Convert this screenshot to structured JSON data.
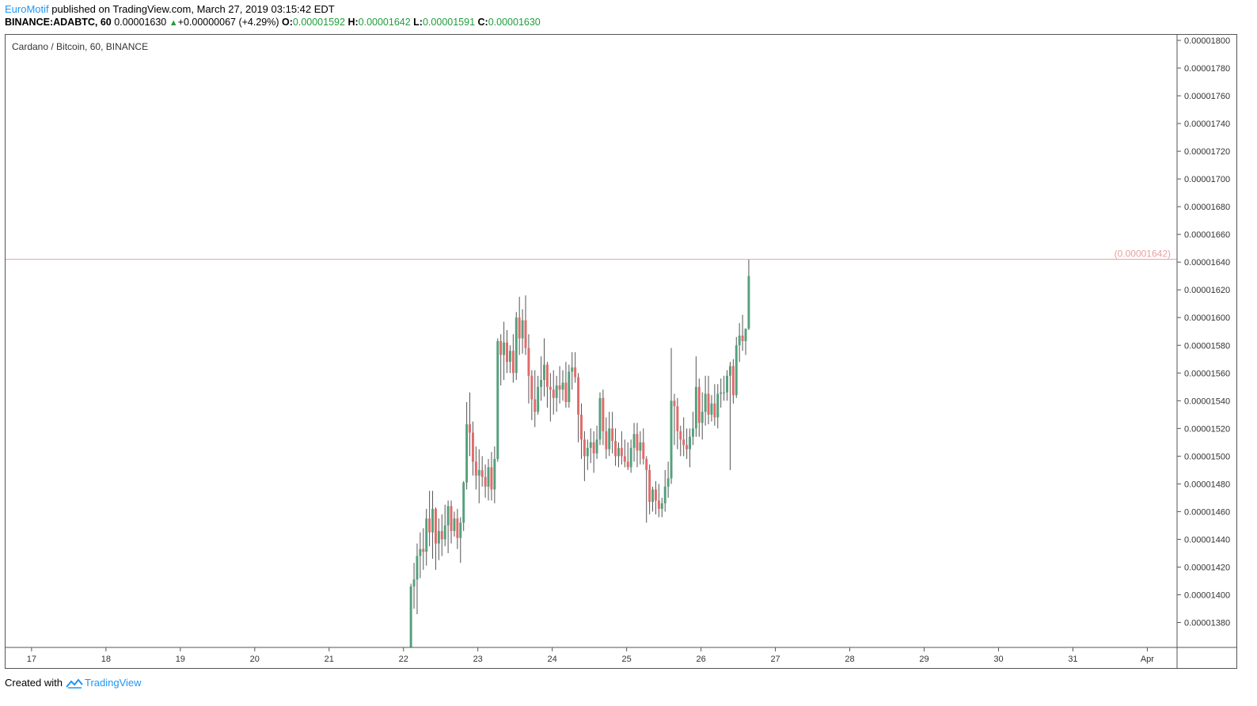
{
  "header": {
    "author": "EuroMotif",
    "published_text": " published on TradingView.com, March 27, 2019 03:15:42 EDT",
    "symbol": "BINANCE:ADABTC, 60",
    "last": "0.00001630",
    "change": "+0.00000067 (+4.29%)",
    "o_label": "O:",
    "o_value": "0.00001592",
    "h_label": "H:",
    "h_value": "0.00001642",
    "l_label": "L:",
    "l_value": "0.00001591",
    "c_label": "C:",
    "c_value": "0.00001630"
  },
  "legend": "Cardano / Bitcoin, 60, BINANCE",
  "footer": {
    "created_with": "Created with",
    "brand": "TradingView"
  },
  "chart_data": {
    "type": "candlestick",
    "y_ticks": [
      "0.00001800",
      "0.00001780",
      "0.00001760",
      "0.00001740",
      "0.00001720",
      "0.00001700",
      "0.00001680",
      "0.00001660",
      "0.00001640",
      "0.00001620",
      "0.00001600",
      "0.00001580",
      "0.00001560",
      "0.00001540",
      "0.00001520",
      "0.00001500",
      "0.00001480",
      "0.00001460",
      "0.00001440",
      "0.00001420",
      "0.00001400",
      "0.00001380"
    ],
    "x_ticks": [
      "17",
      "18",
      "19",
      "20",
      "21",
      "22",
      "23",
      "24",
      "25",
      "26",
      "27",
      "28",
      "29",
      "30",
      "31",
      "Apr"
    ],
    "ylim": [
      1.362e-05,
      1.804e-05
    ],
    "xlim_days": [
      16.65,
      32.4
    ],
    "high_line": {
      "value": 1.642e-05,
      "label": "(0.00001642)"
    },
    "colors": {
      "up": "#53a17c",
      "down": "#e26a6a",
      "wick": "#555555",
      "high_line": "#e8a0a0",
      "axis_text": "#333333"
    },
    "candles_start_day": 22.1,
    "candles_step_day": 0.04167,
    "candles": [
      [
        1.362e-05,
        1.408e-05,
        1.362e-05,
        1.406e-05
      ],
      [
        1.406e-05,
        1.423e-05,
        1.39e-05,
        1.411e-05
      ],
      [
        1.411e-05,
        1.437e-05,
        1.386e-05,
        1.428e-05
      ],
      [
        1.428e-05,
        1.445e-05,
        1.412e-05,
        1.433e-05
      ],
      [
        1.433e-05,
        1.448e-05,
        1.418e-05,
        1.431e-05
      ],
      [
        1.431e-05,
        1.462e-05,
        1.421e-05,
        1.455e-05
      ],
      [
        1.455e-05,
        1.475e-05,
        1.435e-05,
        1.445e-05
      ],
      [
        1.445e-05,
        1.475e-05,
        1.426e-05,
        1.462e-05
      ],
      [
        1.462e-05,
        1.463e-05,
        1.418e-05,
        1.437e-05
      ],
      [
        1.437e-05,
        1.455e-05,
        1.425e-05,
        1.446e-05
      ],
      [
        1.446e-05,
        1.458e-05,
        1.428e-05,
        1.44e-05
      ],
      [
        1.44e-05,
        1.465e-05,
        1.435e-05,
        1.45e-05
      ],
      [
        1.45e-05,
        1.468e-05,
        1.43e-05,
        1.464e-05
      ],
      [
        1.464e-05,
        1.468e-05,
        1.437e-05,
        1.446e-05
      ],
      [
        1.446e-05,
        1.46e-05,
        1.442e-05,
        1.455e-05
      ],
      [
        1.455e-05,
        1.462e-05,
        1.433e-05,
        1.441e-05
      ],
      [
        1.441e-05,
        1.456e-05,
        1.423e-05,
        1.452e-05
      ],
      [
        1.452e-05,
        1.482e-05,
        1.446e-05,
        1.481e-05
      ],
      [
        1.481e-05,
        1.539e-05,
        1.476e-05,
        1.523e-05
      ],
      [
        1.523e-05,
        1.546e-05,
        1.5e-05,
        1.517e-05
      ],
      [
        1.517e-05,
        1.525e-05,
        1.486e-05,
        1.496e-05
      ],
      [
        1.496e-05,
        1.507e-05,
        1.476e-05,
        1.486e-05
      ],
      [
        1.486e-05,
        1.505e-05,
        1.466e-05,
        1.49e-05
      ],
      [
        1.49e-05,
        1.5e-05,
        1.478e-05,
        1.485e-05
      ],
      [
        1.485e-05,
        1.494e-05,
        1.47e-05,
        1.478e-05
      ],
      [
        1.478e-05,
        1.498e-05,
        1.468e-05,
        1.492e-05
      ],
      [
        1.492e-05,
        1.503e-05,
        1.468e-05,
        1.476e-05
      ],
      [
        1.476e-05,
        1.507e-05,
        1.466e-05,
        1.498e-05
      ],
      [
        1.498e-05,
        1.585e-05,
        1.496e-05,
        1.583e-05
      ],
      [
        1.583e-05,
        1.588e-05,
        1.551e-05,
        1.573e-05
      ],
      [
        1.573e-05,
        1.597e-05,
        1.555e-05,
        1.582e-05
      ],
      [
        1.582e-05,
        1.591e-05,
        1.56e-05,
        1.568e-05
      ],
      [
        1.568e-05,
        1.58e-05,
        1.56e-05,
        1.576e-05
      ],
      [
        1.576e-05,
        1.588e-05,
        1.553e-05,
        1.56e-05
      ],
      [
        1.56e-05,
        1.604e-05,
        1.555e-05,
        1.6e-05
      ],
      [
        1.6e-05,
        1.615e-05,
        1.573e-05,
        1.585e-05
      ],
      [
        1.585e-05,
        1.606e-05,
        1.574e-05,
        1.598e-05
      ],
      [
        1.598e-05,
        1.616e-05,
        1.573e-05,
        1.578e-05
      ],
      [
        1.578e-05,
        1.588e-05,
        1.538e-05,
        1.558e-05
      ],
      [
        1.558e-05,
        1.562e-05,
        1.526e-05,
        1.541e-05
      ],
      [
        1.541e-05,
        1.562e-05,
        1.521e-05,
        1.532e-05
      ],
      [
        1.532e-05,
        1.558e-05,
        1.53e-05,
        1.55e-05
      ],
      [
        1.55e-05,
        1.572e-05,
        1.54e-05,
        1.555e-05
      ],
      [
        1.555e-05,
        1.585e-05,
        1.543e-05,
        1.566e-05
      ],
      [
        1.566e-05,
        1.568e-05,
        1.535e-05,
        1.55e-05
      ],
      [
        1.55e-05,
        1.56e-05,
        1.525e-05,
        1.548e-05
      ],
      [
        1.548e-05,
        1.562e-05,
        1.53e-05,
        1.542e-05
      ],
      [
        1.542e-05,
        1.558e-05,
        1.532e-05,
        1.551e-05
      ],
      [
        1.551e-05,
        1.565e-05,
        1.538e-05,
        1.548e-05
      ],
      [
        1.548e-05,
        1.562e-05,
        1.54e-05,
        1.553e-05
      ],
      [
        1.553e-05,
        1.568e-05,
        1.535e-05,
        1.539e-05
      ],
      [
        1.539e-05,
        1.566e-05,
        1.535e-05,
        1.561e-05
      ],
      [
        1.561e-05,
        1.575e-05,
        1.548e-05,
        1.564e-05
      ],
      [
        1.564e-05,
        1.575e-05,
        1.553e-05,
        1.557e-05
      ],
      [
        1.557e-05,
        1.56e-05,
        1.51e-05,
        1.53e-05
      ],
      [
        1.53e-05,
        1.538e-05,
        1.498e-05,
        1.512e-05
      ],
      [
        1.512e-05,
        1.518e-05,
        1.482e-05,
        1.5e-05
      ],
      [
        1.5e-05,
        1.512e-05,
        1.49e-05,
        1.506e-05
      ],
      [
        1.506e-05,
        1.52e-05,
        1.495e-05,
        1.51e-05
      ],
      [
        1.51e-05,
        1.518e-05,
        1.488e-05,
        1.502e-05
      ],
      [
        1.502e-05,
        1.522e-05,
        1.498e-05,
        1.512e-05
      ],
      [
        1.512e-05,
        1.546e-05,
        1.508e-05,
        1.542e-05
      ],
      [
        1.542e-05,
        1.548e-05,
        1.508e-05,
        1.518e-05
      ],
      [
        1.518e-05,
        1.528e-05,
        1.498e-05,
        1.505e-05
      ],
      [
        1.505e-05,
        1.532e-05,
        1.5e-05,
        1.52e-05
      ],
      [
        1.52e-05,
        1.532e-05,
        1.502e-05,
        1.511e-05
      ],
      [
        1.511e-05,
        1.52e-05,
        1.493e-05,
        1.5e-05
      ],
      [
        1.5e-05,
        1.51e-05,
        1.492e-05,
        1.506e-05
      ],
      [
        1.506e-05,
        1.518e-05,
        1.494e-05,
        1.5e-05
      ],
      [
        1.5e-05,
        1.512e-05,
        1.492e-05,
        1.496e-05
      ],
      [
        1.496e-05,
        1.51e-05,
        1.49e-05,
        1.492e-05
      ],
      [
        1.492e-05,
        1.512e-05,
        1.488e-05,
        1.506e-05
      ],
      [
        1.506e-05,
        1.524e-05,
        1.496e-05,
        1.516e-05
      ],
      [
        1.516e-05,
        1.524e-05,
        1.492e-05,
        1.504e-05
      ],
      [
        1.504e-05,
        1.518e-05,
        1.494e-05,
        1.51e-05
      ],
      [
        1.51e-05,
        1.52e-05,
        1.494e-05,
        1.498e-05
      ],
      [
        1.498e-05,
        1.5e-05,
        1.452e-05,
        1.49e-05
      ],
      [
        1.49e-05,
        1.494e-05,
        1.458e-05,
        1.467e-05
      ],
      [
        1.467e-05,
        1.478e-05,
        1.46e-05,
        1.476e-05
      ],
      [
        1.476e-05,
        1.482e-05,
        1.458e-05,
        1.468e-05
      ],
      [
        1.468e-05,
        1.48e-05,
        1.456e-05,
        1.462e-05
      ],
      [
        1.462e-05,
        1.47e-05,
        1.456e-05,
        1.466e-05
      ],
      [
        1.466e-05,
        1.49e-05,
        1.46e-05,
        1.478e-05
      ],
      [
        1.478e-05,
        1.496e-05,
        1.47e-05,
        1.484e-05
      ],
      [
        1.484e-05,
        1.578e-05,
        1.48e-05,
        1.54e-05
      ],
      [
        1.54e-05,
        1.545e-05,
        1.508e-05,
        1.536e-05
      ],
      [
        1.536e-05,
        1.542e-05,
        1.505e-05,
        1.518e-05
      ],
      [
        1.518e-05,
        1.522e-05,
        1.5e-05,
        1.512e-05
      ],
      [
        1.512e-05,
        1.528e-05,
        1.5e-05,
        1.508e-05
      ],
      [
        1.508e-05,
        1.52e-05,
        1.498e-05,
        1.505e-05
      ],
      [
        1.505e-05,
        1.52e-05,
        1.492e-05,
        1.514e-05
      ],
      [
        1.514e-05,
        1.532e-05,
        1.508e-05,
        1.52e-05
      ],
      [
        1.52e-05,
        1.572e-05,
        1.514e-05,
        1.55e-05
      ],
      [
        1.55e-05,
        1.556e-05,
        1.514e-05,
        1.524e-05
      ],
      [
        1.524e-05,
        1.546e-05,
        1.512e-05,
        1.532e-05
      ],
      [
        1.532e-05,
        1.558e-05,
        1.522e-05,
        1.545e-05
      ],
      [
        1.545e-05,
        1.558e-05,
        1.523e-05,
        1.53e-05
      ],
      [
        1.53e-05,
        1.544e-05,
        1.525e-05,
        1.538e-05
      ],
      [
        1.538e-05,
        1.552e-05,
        1.522e-05,
        1.528e-05
      ],
      [
        1.528e-05,
        1.552e-05,
        1.52e-05,
        1.545e-05
      ],
      [
        1.545e-05,
        1.556e-05,
        1.535e-05,
        1.546e-05
      ],
      [
        1.546e-05,
        1.558e-05,
        1.54e-05,
        1.546e-05
      ],
      [
        1.546e-05,
        1.562e-05,
        1.54e-05,
        1.558e-05
      ],
      [
        1.558e-05,
        1.568e-05,
        1.49e-05,
        1.565e-05
      ],
      [
        1.565e-05,
        1.57e-05,
        1.538e-05,
        1.544e-05
      ],
      [
        1.544e-05,
        1.586e-05,
        1.542e-05,
        1.58e-05
      ],
      [
        1.58e-05,
        1.596e-05,
        1.568e-05,
        1.587e-05
      ],
      [
        1.587e-05,
        1.602e-05,
        1.576e-05,
        1.583e-05
      ],
      [
        1.583e-05,
        1.592e-05,
        1.573e-05,
        1.592e-05
      ],
      [
        1.592e-05,
        1.642e-05,
        1.591e-05,
        1.63e-05
      ]
    ]
  }
}
